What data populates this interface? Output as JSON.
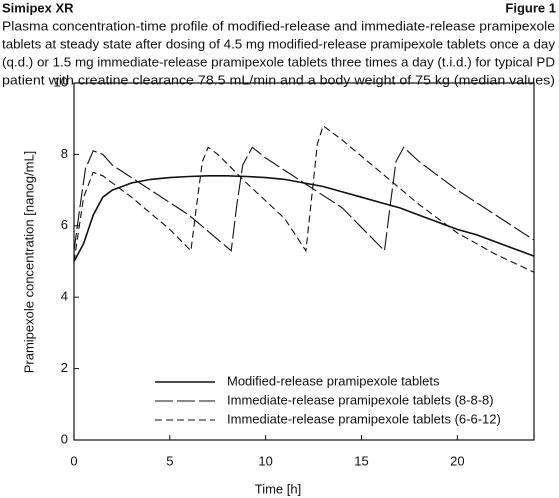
{
  "chart_data": {
    "type": "line",
    "header": "Simipex XR",
    "figure_label": "Figure 1",
    "caption_lines": [
      "Plasma concentration-time profile of  modified-release and immediate-release pramipexole",
      "tablets at steady state after dosing of  4.5 mg modified-release pramipexole tablets once a day",
      "(q.d.) or 1.5 mg immediate-release pramipexole tablets three times a day (t.i.d.) for typical PD",
      "patient with creatine clearance 78.5 mL/min and a body weight of 75 kg (median values)"
    ],
    "xlabel": "Time [h]",
    "ylabel": "Pramipexole concentration [nanog/mL]",
    "xlim": [
      0,
      24
    ],
    "xticks": [
      0,
      5,
      10,
      15,
      20
    ],
    "ylim": [
      0,
      10
    ],
    "yticks": [
      0,
      2,
      4,
      6,
      8,
      10
    ],
    "series": [
      {
        "name": "Modified-release pramipexole tablets",
        "color": "#111111",
        "style": "solid",
        "x": [
          0,
          0.5,
          1,
          1.5,
          2,
          3,
          4,
          5,
          6,
          7,
          8,
          9,
          10,
          11,
          12,
          13,
          14,
          15,
          16,
          17,
          18,
          19,
          20,
          21,
          22,
          23,
          24
        ],
        "values": [
          5.0,
          5.5,
          6.3,
          6.8,
          7.0,
          7.2,
          7.3,
          7.35,
          7.38,
          7.4,
          7.4,
          7.38,
          7.35,
          7.3,
          7.2,
          7.1,
          6.95,
          6.8,
          6.65,
          6.5,
          6.3,
          6.1,
          5.9,
          5.75,
          5.55,
          5.35,
          5.15
        ]
      },
      {
        "name": "Immediate-release pramipexole tablets (8-8-8)",
        "color": "#111111",
        "style": "long-dash",
        "x": [
          0,
          0.3,
          0.6,
          1,
          1.5,
          2,
          4,
          6,
          8.2,
          8.5,
          8.8,
          9.3,
          10,
          12,
          14,
          16.2,
          16.5,
          16.8,
          17.2,
          18,
          20,
          22,
          24
        ],
        "values": [
          5.3,
          6.5,
          7.6,
          8.1,
          8.0,
          7.7,
          7.0,
          6.3,
          5.3,
          6.6,
          7.7,
          8.2,
          7.9,
          7.2,
          6.5,
          5.3,
          6.6,
          7.8,
          8.2,
          7.8,
          7.0,
          6.3,
          5.6
        ]
      },
      {
        "name": "Immediate-release pramipexole tablets (6-6-12)",
        "color": "#111111",
        "style": "short-dash",
        "x": [
          0,
          0.5,
          1,
          1.5,
          3,
          5,
          6.1,
          6.4,
          6.7,
          7,
          7.5,
          9,
          11,
          12.1,
          12.4,
          12.7,
          13,
          14,
          16,
          18,
          20,
          22,
          24
        ],
        "values": [
          5.0,
          6.8,
          7.5,
          7.4,
          6.8,
          5.9,
          5.3,
          6.6,
          7.8,
          8.2,
          8.0,
          7.2,
          6.2,
          5.3,
          6.8,
          8.3,
          8.8,
          8.4,
          7.5,
          6.6,
          5.8,
          5.2,
          4.7
        ]
      }
    ]
  }
}
